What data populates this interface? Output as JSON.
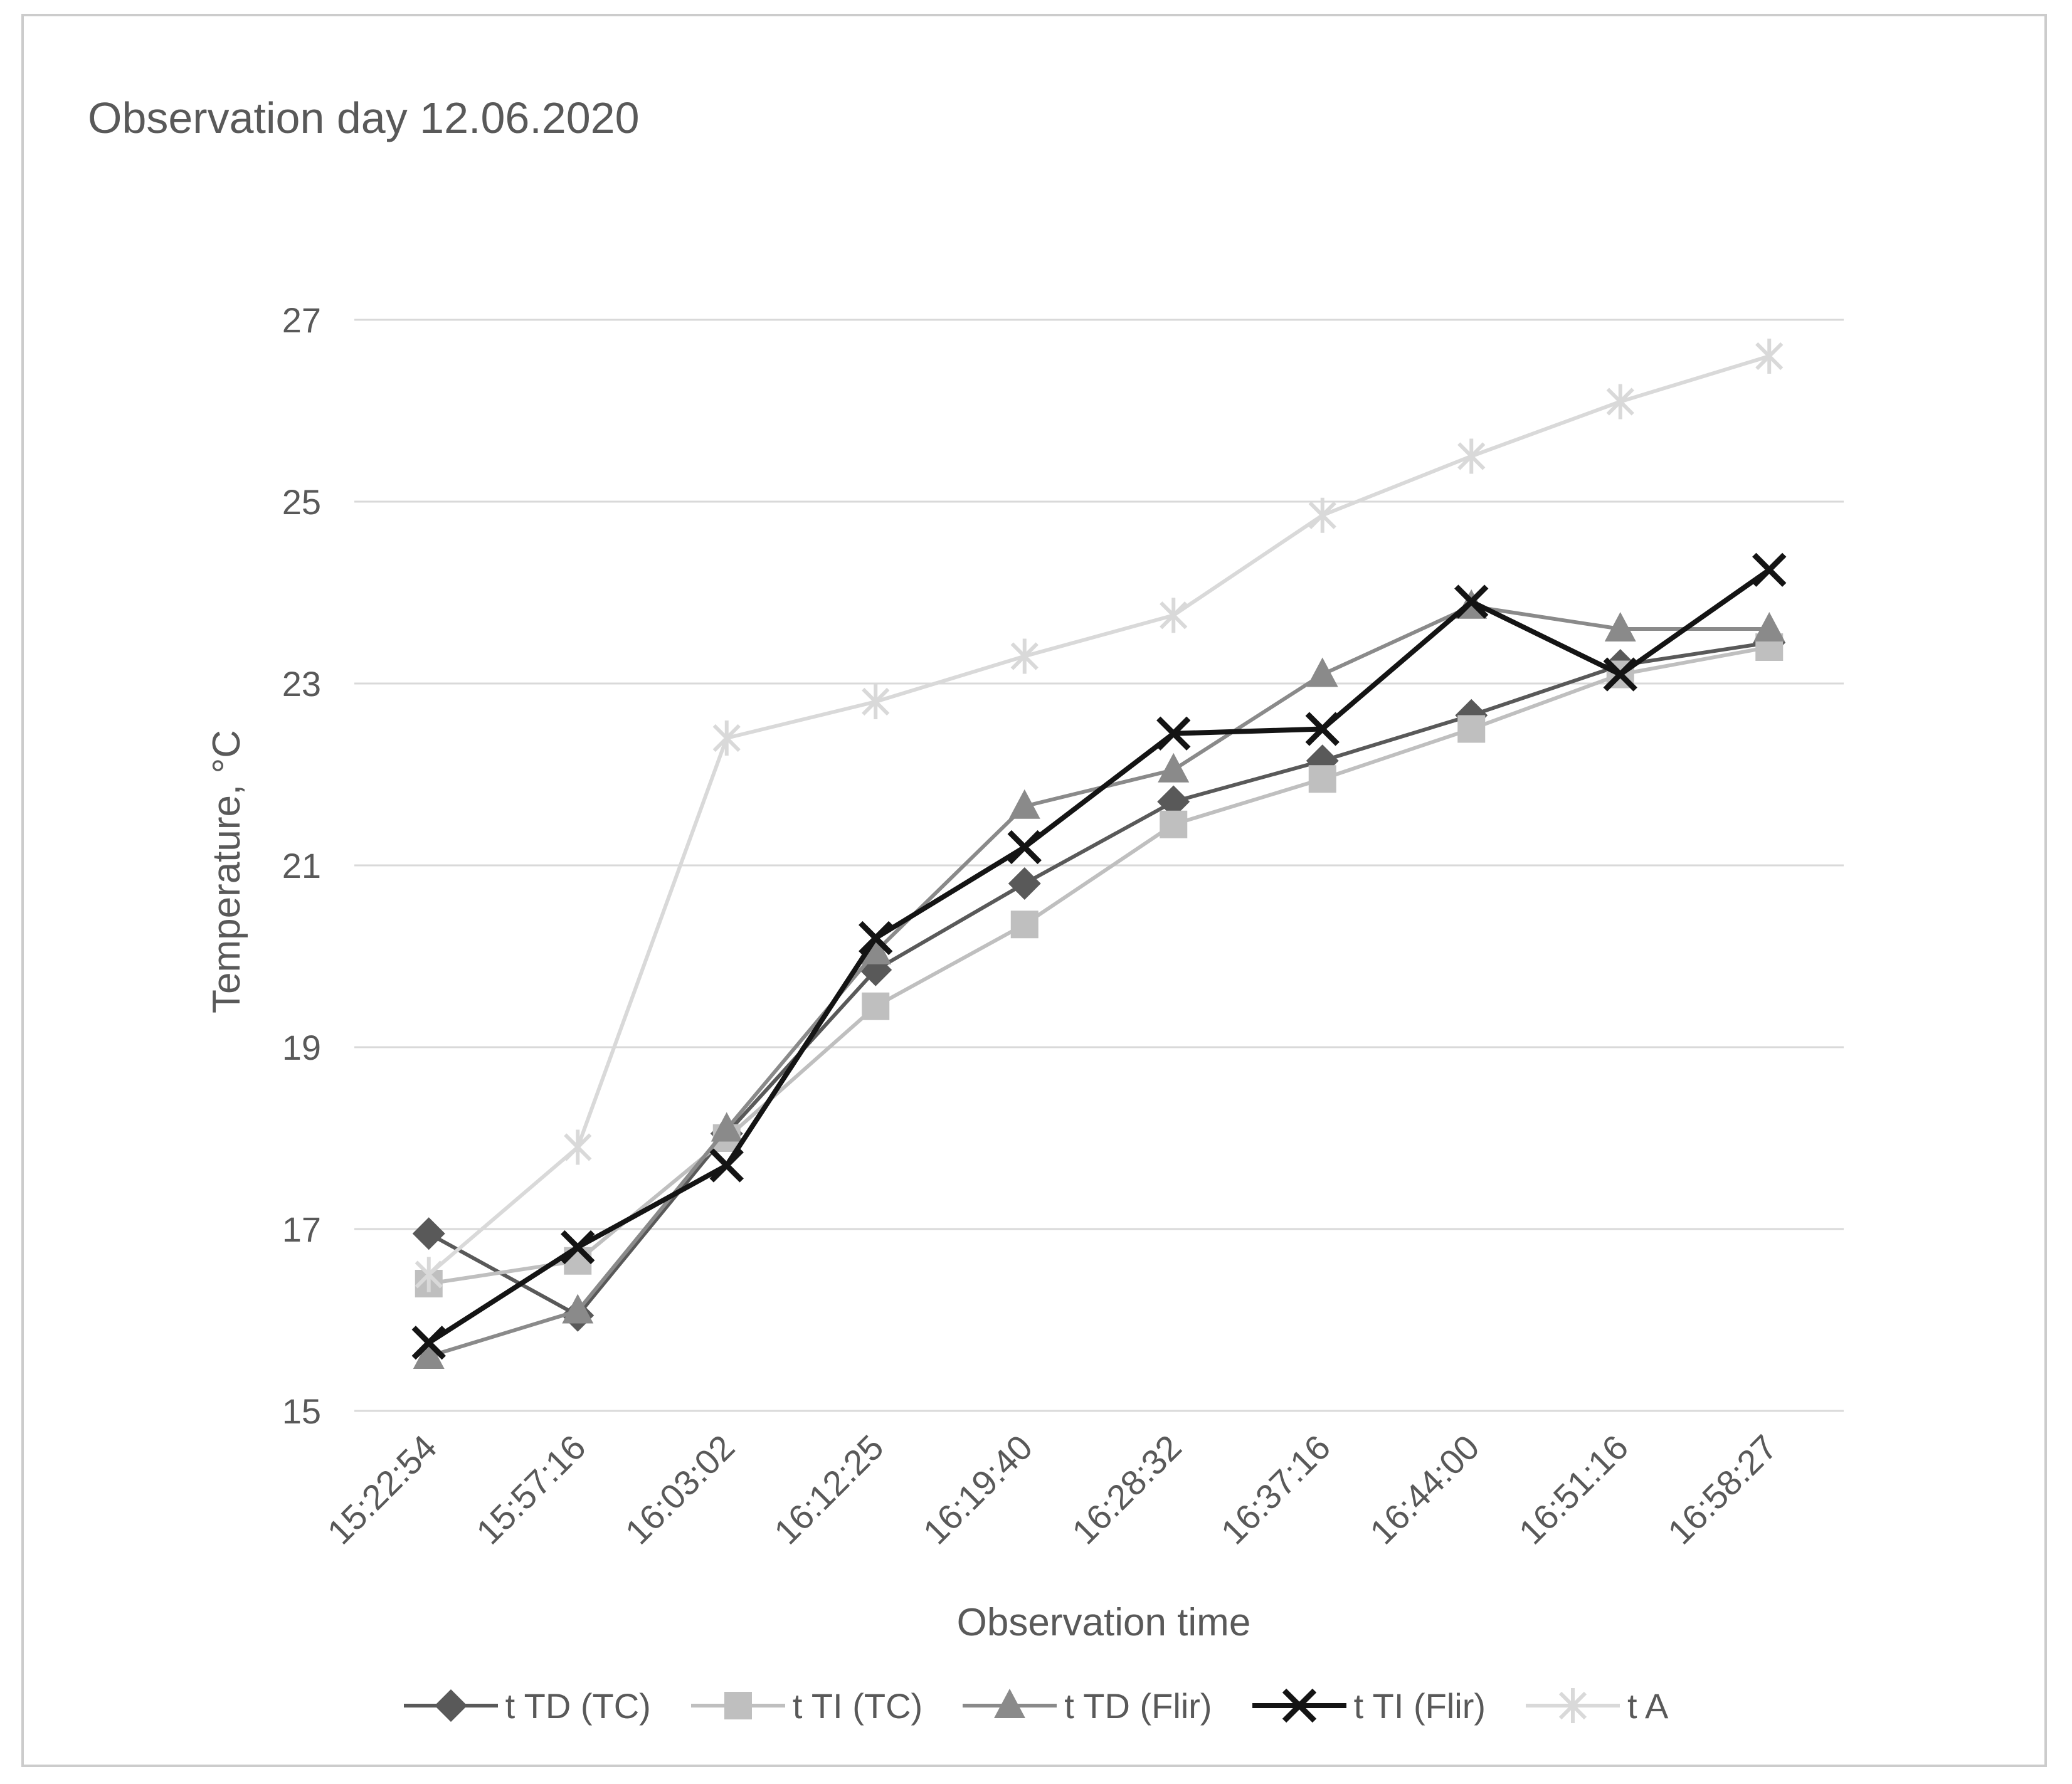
{
  "title": "Observation day 12.06.2020",
  "chart_data": {
    "type": "line",
    "title": "Observation day 12.06.2020",
    "xlabel": "Observation time",
    "ylabel": "Temperature, °C",
    "categories": [
      "15:22:54",
      "15:57:16",
      "16:03:02",
      "16:12:25",
      "16:19:40",
      "16:28:32",
      "16:37:16",
      "16:44:00",
      "16:51:16",
      "16:58:27"
    ],
    "series": [
      {
        "name": "t TD (TC)",
        "marker": "diamond",
        "color": "#595959",
        "values": [
          16.95,
          16.05,
          18.05,
          19.85,
          20.8,
          21.7,
          22.15,
          22.65,
          23.2,
          23.45
        ]
      },
      {
        "name": "t TI (TC)",
        "marker": "square",
        "color": "#bfbfbf",
        "values": [
          16.4,
          16.65,
          18.0,
          19.45,
          20.35,
          21.45,
          21.95,
          22.5,
          23.1,
          23.4
        ]
      },
      {
        "name": "t TD (Flir)",
        "marker": "triangle",
        "color": "#8a8a8a",
        "values": [
          15.6,
          16.1,
          18.1,
          20.05,
          21.65,
          22.05,
          23.1,
          23.85,
          23.6,
          23.6
        ]
      },
      {
        "name": "t TI (Flir)",
        "marker": "x",
        "color": "#141414",
        "values": [
          15.75,
          16.8,
          17.7,
          20.2,
          21.2,
          22.45,
          22.5,
          23.9,
          23.1,
          24.25
        ]
      },
      {
        "name": "t A",
        "marker": "asterisk",
        "color": "#d9d9d9",
        "values": [
          16.5,
          17.9,
          22.4,
          22.8,
          23.3,
          23.75,
          24.85,
          25.5,
          26.1,
          26.6
        ]
      }
    ],
    "ylim": [
      15,
      27
    ],
    "yticks": [
      15,
      17,
      19,
      21,
      23,
      25,
      27
    ],
    "grid": "horizontal",
    "gridline_color": "#d9d9d9",
    "text_color": "#595959",
    "legend_position": "bottom"
  }
}
